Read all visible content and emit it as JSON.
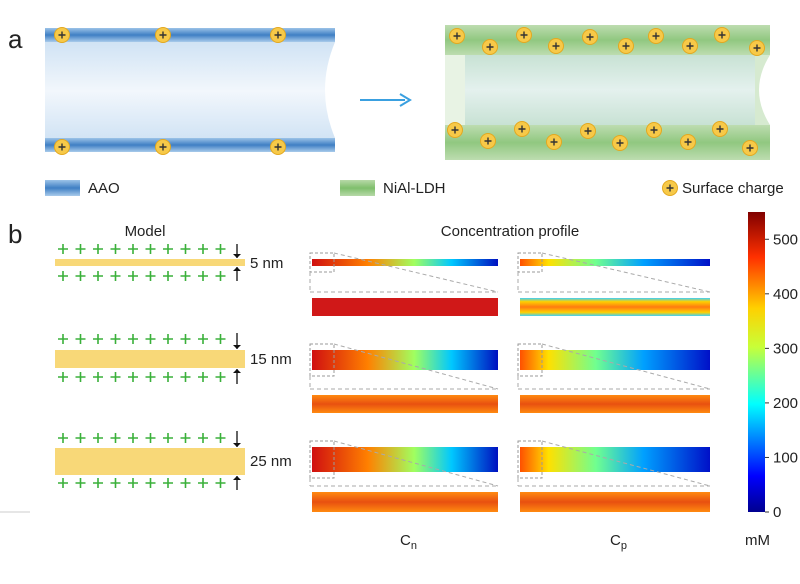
{
  "panels": {
    "a": {
      "label": "a",
      "legend": [
        "AAO",
        "NiAl-LDH",
        "Surface charge"
      ]
    },
    "b": {
      "label": "b",
      "model_title": "Model",
      "profile_title": "Concentration profile",
      "widths": [
        "5 nm",
        "15 nm",
        "25 nm"
      ],
      "columns": [
        {
          "main": "C",
          "sub": "n"
        },
        {
          "main": "C",
          "sub": "p"
        }
      ],
      "colorbar": {
        "lim": [
          0,
          550
        ],
        "ticks": [
          0,
          100,
          200,
          300,
          400,
          500
        ],
        "unit": "mM"
      }
    }
  }
}
